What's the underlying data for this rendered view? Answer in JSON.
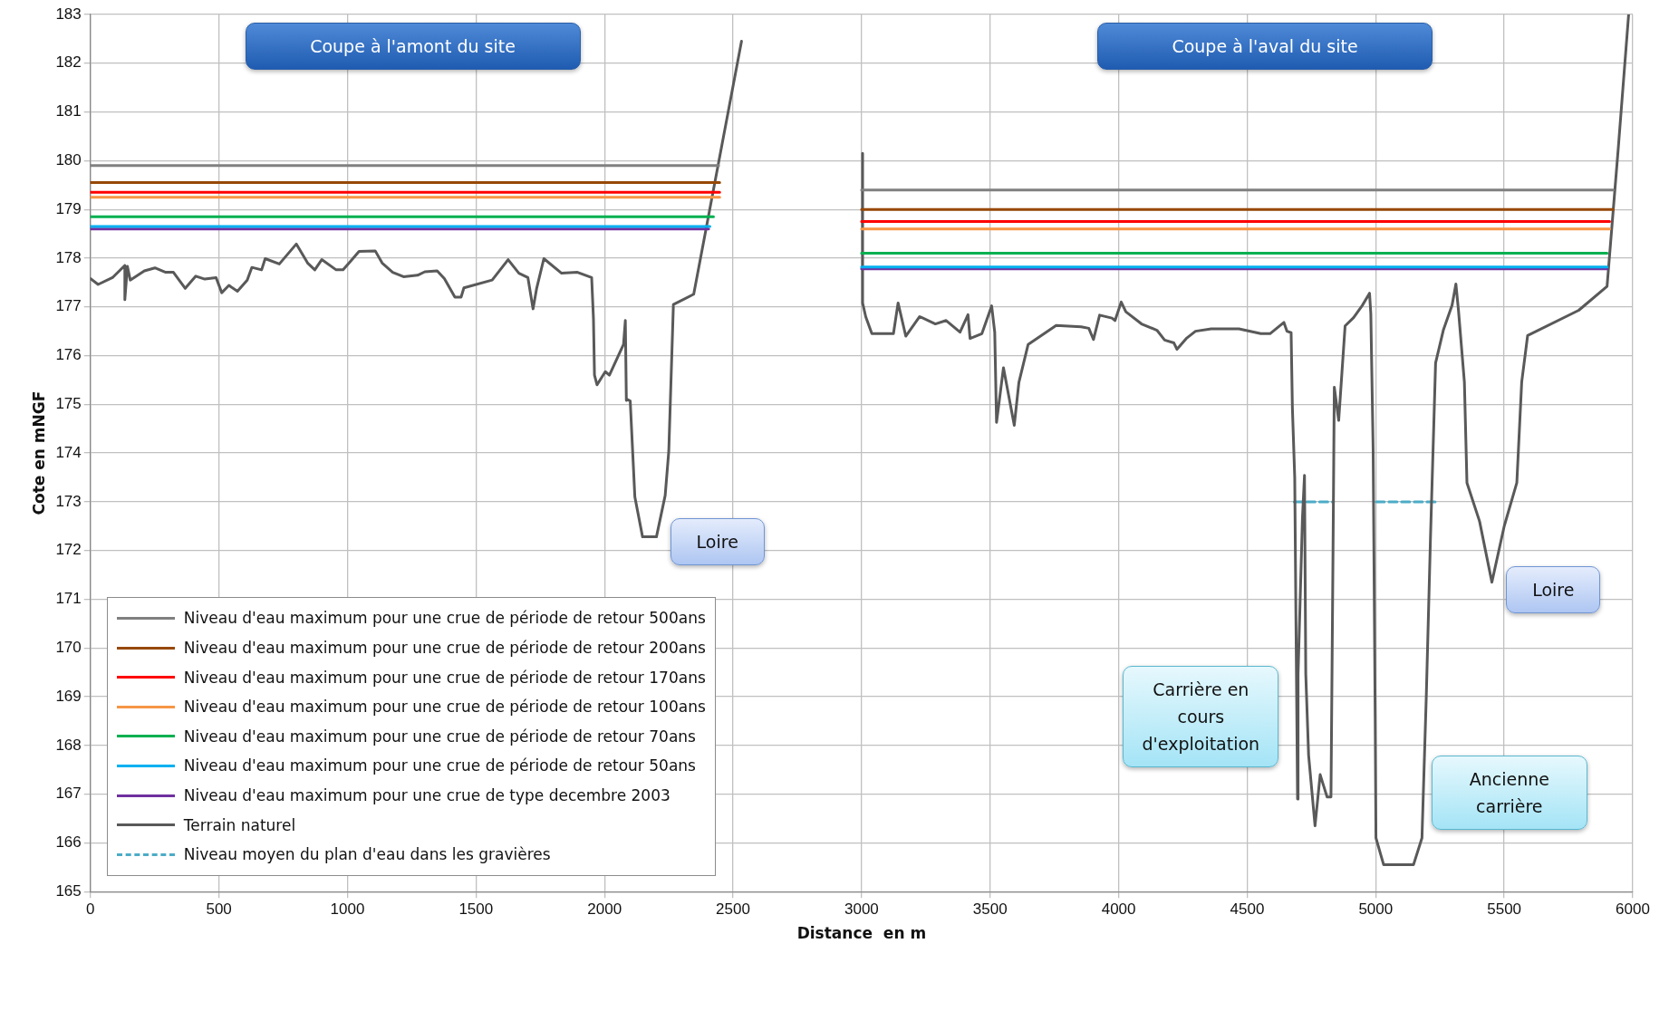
{
  "chart_data": {
    "type": "line",
    "xlabel": "Distance  en m",
    "ylabel": "Cote en mNGF",
    "xlim": [
      0,
      6000
    ],
    "xticks": [
      0,
      500,
      1000,
      1500,
      2000,
      2500,
      3000,
      3500,
      4000,
      4500,
      5000,
      5500,
      6000
    ],
    "ylim": [
      165,
      183
    ],
    "yticks": [
      165,
      166,
      167,
      168,
      169,
      170,
      171,
      172,
      173,
      174,
      175,
      176,
      177,
      178,
      179,
      180,
      181,
      182,
      183
    ],
    "grid": true,
    "legend": "bottom left",
    "marker": "none",
    "series": [
      {
        "name": "Niveau d'eau maximum pour une crue de période de retour 500ans",
        "color": "#808080",
        "x": [
          0,
          2444,
          2700,
          3000,
          5924
        ],
        "values": [
          179.9,
          179.9,
          null,
          179.4,
          179.4
        ]
      },
      {
        "name": "Niveau d'eau maximum pour une crue de période de retour 200ans",
        "color": "#974806",
        "x": [
          0,
          2448,
          2700,
          3000,
          5924
        ],
        "values": [
          179.55,
          179.55,
          null,
          179.0,
          179.0
        ]
      },
      {
        "name": "Niveau d'eau maximum pour une crue de période de retour 170ans",
        "color": "#ff0000",
        "x": [
          0,
          2448,
          2700,
          3000,
          5910
        ],
        "values": [
          179.35,
          179.35,
          null,
          178.75,
          178.75
        ]
      },
      {
        "name": "Niveau d'eau maximum pour une crue de période de retour 100ans",
        "color": "#f79646",
        "x": [
          0,
          2448,
          2700,
          3000,
          5910
        ],
        "values": [
          179.25,
          179.25,
          null,
          178.6,
          178.6
        ]
      },
      {
        "name": "Niveau d'eau maximum pour une crue de période de retour 70ans",
        "color": "#00b050",
        "x": [
          0,
          2424,
          2700,
          3000,
          5900
        ],
        "values": [
          178.85,
          178.85,
          null,
          178.1,
          178.1
        ]
      },
      {
        "name": "Niveau d'eau maximum pour une crue de période de retour 50ans",
        "color": "#00b0f0",
        "x": [
          0,
          2410,
          2700,
          3000,
          5900
        ],
        "values": [
          178.65,
          178.65,
          null,
          177.82,
          177.82
        ]
      },
      {
        "name": "Niveau d'eau maximum pour une crue de type decembre 2003",
        "color": "#7030a0",
        "x": [
          0,
          2405,
          2700,
          3000,
          5900
        ],
        "values": [
          178.6,
          178.6,
          null,
          177.78,
          177.78
        ]
      },
      {
        "name": "Terrain naturel",
        "color": "#595959",
        "x": [
          0,
          30,
          86,
          134,
          134,
          144,
          155,
          210,
          251,
          293,
          323,
          369,
          410,
          445,
          489,
          511,
          539,
          572,
          610,
          628,
          666,
          680,
          735,
          801,
          845,
          873,
          900,
          956,
          983,
          1011,
          1045,
          1108,
          1135,
          1176,
          1218,
          1273,
          1301,
          1349,
          1377,
          1418,
          1442,
          1453,
          1563,
          1625,
          1667,
          1702,
          1722,
          1736,
          1764,
          1833,
          1895,
          1950,
          1957,
          1961,
          1971,
          2003,
          2019,
          2074,
          2081,
          2085,
          2088,
          2100,
          2118,
          2148,
          2202,
          2236,
          2250,
          2268,
          2347,
          2533,
          2700,
          3004,
          3004,
          3016,
          3040,
          3124,
          3142,
          3172,
          3226,
          3287,
          3329,
          3383,
          3414,
          3422,
          3468,
          3506,
          3518,
          3525,
          3552,
          3594,
          3612,
          3648,
          3757,
          3854,
          3884,
          3902,
          3926,
          3974,
          3986,
          4010,
          4028,
          4089,
          4149,
          4179,
          4215,
          4227,
          4263,
          4299,
          4360,
          4468,
          4553,
          4589,
          4643,
          4655,
          4671,
          4676,
          4685,
          4690,
          4696,
          4698,
          4715,
          4723,
          4728,
          4739,
          4764,
          4784,
          4811,
          4826,
          4834,
          4839,
          4856,
          4881,
          4914,
          4948,
          4976,
          4981,
          4990,
          4998,
          5001,
          5031,
          5147,
          5180,
          5197,
          5213,
          5227,
          5233,
          5263,
          5297,
          5312,
          5322,
          5345,
          5355,
          5404,
          5452,
          5500,
          5549,
          5568,
          5591,
          5790,
          5900,
          5944,
          5984
        ],
        "values": [
          177.58,
          177.46,
          177.6,
          177.85,
          177.15,
          177.83,
          177.55,
          177.74,
          177.8,
          177.71,
          177.71,
          177.38,
          177.63,
          177.57,
          177.6,
          177.29,
          177.44,
          177.32,
          177.55,
          177.81,
          177.76,
          177.99,
          177.88,
          178.29,
          177.9,
          177.76,
          177.97,
          177.76,
          177.76,
          177.93,
          178.14,
          178.15,
          177.9,
          177.71,
          177.62,
          177.65,
          177.72,
          177.74,
          177.58,
          177.2,
          177.2,
          177.39,
          177.55,
          177.97,
          177.69,
          177.6,
          176.96,
          177.38,
          177.99,
          177.69,
          177.71,
          177.6,
          176.75,
          175.6,
          175.4,
          175.67,
          175.6,
          176.23,
          176.72,
          175.08,
          175.1,
          175.07,
          173.1,
          172.28,
          172.28,
          173.13,
          174.04,
          177.05,
          177.26,
          182.45,
          null,
          180.15,
          177.08,
          176.8,
          176.45,
          176.45,
          177.08,
          176.4,
          176.8,
          176.65,
          176.72,
          176.48,
          176.84,
          176.35,
          176.45,
          177.02,
          176.48,
          174.63,
          175.75,
          174.57,
          175.45,
          176.23,
          176.62,
          176.59,
          176.56,
          176.33,
          176.83,
          176.77,
          176.72,
          177.1,
          176.9,
          176.65,
          176.52,
          176.32,
          176.26,
          176.13,
          176.35,
          176.5,
          176.55,
          176.55,
          176.45,
          176.45,
          176.68,
          176.5,
          176.47,
          174.92,
          173.5,
          170.47,
          166.9,
          169.46,
          172.66,
          173.54,
          169.46,
          167.8,
          166.35,
          167.4,
          166.94,
          166.94,
          171.98,
          175.35,
          174.67,
          176.61,
          176.78,
          177.03,
          177.28,
          176.86,
          174.09,
          168.62,
          166.1,
          165.55,
          165.55,
          166.1,
          169.04,
          172.24,
          174.76,
          175.85,
          176.52,
          177.03,
          177.47,
          176.93,
          175.46,
          173.39,
          172.6,
          171.35,
          172.5,
          173.39,
          175.46,
          176.41,
          176.93,
          177.42,
          180.28,
          183
        ]
      },
      {
        "name": "Niveau moyen du plan d'eau dans les gravières",
        "color": "#4bacc6",
        "line_style": "dashed",
        "x": [
          4683,
          4836,
          4900,
          5002,
          5236
        ],
        "values": [
          173,
          173,
          null,
          173,
          173
        ]
      }
    ],
    "annotations": [
      "Coupe à l'amont du site",
      "Coupe à l'aval du site",
      "Loire",
      "Loire",
      "Carrière en cours d'exploitation",
      "Ancienne carrière"
    ]
  }
}
